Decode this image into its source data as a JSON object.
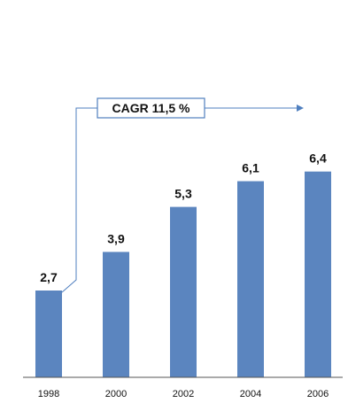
{
  "chart_data": {
    "type": "bar",
    "categories": [
      "1998",
      "2000",
      "2002",
      "2004",
      "2006"
    ],
    "values": [
      2.7,
      3.9,
      5.3,
      6.1,
      6.4
    ],
    "value_labels": [
      "2,7",
      "3,9",
      "5,3",
      "6,1",
      "6,4"
    ],
    "title": "",
    "xlabel": "",
    "ylabel": "",
    "ylim": [
      0,
      8
    ],
    "grid": false,
    "bar_color": "#5b85bf",
    "annotation": {
      "text": "CAGR 11,5 %",
      "from_category": "1998",
      "to_category": "2006",
      "border_color": "#4f7fbf",
      "line_color": "#4f7fbf"
    }
  }
}
